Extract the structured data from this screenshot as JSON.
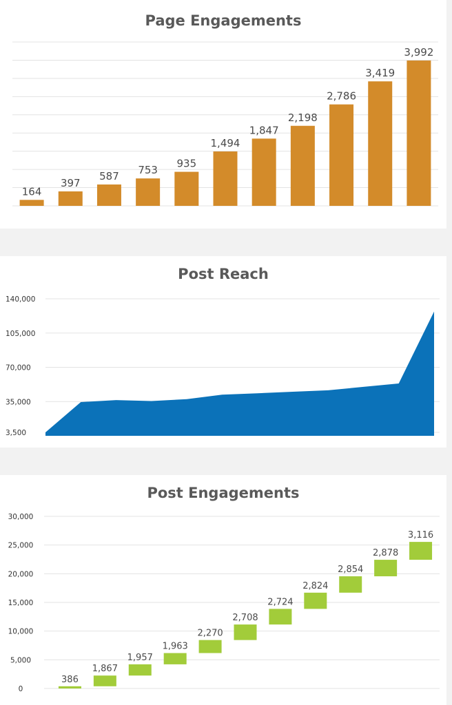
{
  "colors": {
    "page_engagements": "#d38b2a",
    "post_reach": "#0b72b9",
    "post_engagements": "#a2cc3a",
    "grid": "#e3e3e3",
    "title": "#595959"
  },
  "chart_data": [
    {
      "type": "bar",
      "title": "Page Engagements",
      "values": [
        164,
        397,
        587,
        753,
        935,
        1494,
        1847,
        2198,
        2786,
        3419,
        3992
      ],
      "data_labels": [
        "164",
        "397",
        "587",
        "753",
        "935",
        "1,494",
        "1,847",
        "2,198",
        "2,786",
        "3,419",
        "3,992"
      ],
      "ylim": [
        0,
        4500
      ],
      "grid": true
    },
    {
      "type": "area",
      "title": "Post Reach",
      "values": [
        3500,
        34500,
        36500,
        35500,
        37500,
        42000,
        43500,
        45000,
        46500,
        50000,
        53500,
        127000
      ],
      "ylim": [
        0,
        140000
      ],
      "yticks": [
        3500,
        35000,
        70000,
        105000,
        140000
      ],
      "ytick_labels": [
        "3,500",
        "35,000",
        "70,000",
        "105,000",
        "140,000"
      ],
      "grid": true
    },
    {
      "type": "bar",
      "title": "Post Engagements",
      "subtype": "waterfall",
      "values": [
        386,
        1867,
        1957,
        1963,
        2270,
        2708,
        2724,
        2824,
        2854,
        2878,
        3116
      ],
      "data_labels": [
        "386",
        "1,867",
        "1,957",
        "1,963",
        "2,270",
        "2,708",
        "2,724",
        "2,824",
        "2,854",
        "2,878",
        "3,116"
      ],
      "ylim": [
        0,
        30000
      ],
      "yticks": [
        0,
        5000,
        10000,
        15000,
        20000,
        25000,
        30000
      ],
      "ytick_labels": [
        "0",
        "5,000",
        "10,000",
        "15,000",
        "20,000",
        "25,000",
        "30,000"
      ],
      "grid": true
    }
  ]
}
